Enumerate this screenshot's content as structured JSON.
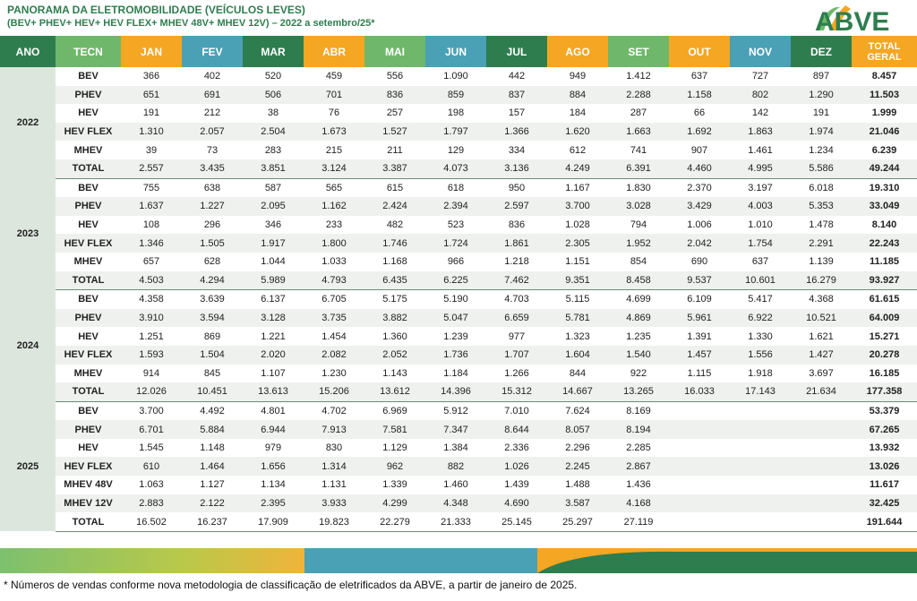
{
  "header": {
    "title": "PANORAMA DA ELETROMOBILIDADE (VEÍCULOS LEVES)",
    "subtitle": "(BEV+ PHEV+ HEV+ HEV FLEX+ MHEV 48V+ MHEV 12V) – 2022 a setembro/25*"
  },
  "logo": {
    "text": "ABVE",
    "colors": [
      "#2e7d4f",
      "#f5a623",
      "#4aa0b5"
    ]
  },
  "colors": {
    "green_dark": "#2e7d4f",
    "green_light": "#6fb86b",
    "orange": "#f5a623",
    "teal": "#4aa0b5"
  },
  "columns": [
    {
      "label": "ANO",
      "color": "#2e7d4f"
    },
    {
      "label": "TECN",
      "color": "#6fb86b"
    },
    {
      "label": "JAN",
      "color": "#f5a623"
    },
    {
      "label": "FEV",
      "color": "#4aa0b5"
    },
    {
      "label": "MAR",
      "color": "#2e7d4f"
    },
    {
      "label": "ABR",
      "color": "#f5a623"
    },
    {
      "label": "MAI",
      "color": "#6fb86b"
    },
    {
      "label": "JUN",
      "color": "#4aa0b5"
    },
    {
      "label": "JUL",
      "color": "#2e7d4f"
    },
    {
      "label": "AGO",
      "color": "#f5a623"
    },
    {
      "label": "SET",
      "color": "#6fb86b"
    },
    {
      "label": "OUT",
      "color": "#f5a623"
    },
    {
      "label": "NOV",
      "color": "#4aa0b5"
    },
    {
      "label": "DEZ",
      "color": "#2e7d4f"
    },
    {
      "label": "TOTAL GERAL",
      "color": "#f5a623"
    }
  ],
  "years": [
    {
      "year": "2022",
      "rows": [
        {
          "tech": "BEV",
          "values": [
            "366",
            "402",
            "520",
            "459",
            "556",
            "1.090",
            "442",
            "949",
            "1.412",
            "637",
            "727",
            "897"
          ],
          "total": "8.457"
        },
        {
          "tech": "PHEV",
          "values": [
            "651",
            "691",
            "506",
            "701",
            "836",
            "859",
            "837",
            "884",
            "2.288",
            "1.158",
            "802",
            "1.290"
          ],
          "total": "11.503"
        },
        {
          "tech": "HEV",
          "values": [
            "191",
            "212",
            "38",
            "76",
            "257",
            "198",
            "157",
            "184",
            "287",
            "66",
            "142",
            "191"
          ],
          "total": "1.999"
        },
        {
          "tech": "HEV FLEX",
          "values": [
            "1.310",
            "2.057",
            "2.504",
            "1.673",
            "1.527",
            "1.797",
            "1.366",
            "1.620",
            "1.663",
            "1.692",
            "1.863",
            "1.974"
          ],
          "total": "21.046"
        },
        {
          "tech": "MHEV",
          "values": [
            "39",
            "73",
            "283",
            "215",
            "211",
            "129",
            "334",
            "612",
            "741",
            "907",
            "1.461",
            "1.234"
          ],
          "total": "6.239"
        },
        {
          "tech": "TOTAL",
          "values": [
            "2.557",
            "3.435",
            "3.851",
            "3.124",
            "3.387",
            "4.073",
            "3.136",
            "4.249",
            "6.391",
            "4.460",
            "4.995",
            "5.586"
          ],
          "total": "49.244"
        }
      ]
    },
    {
      "year": "2023",
      "rows": [
        {
          "tech": "BEV",
          "values": [
            "755",
            "638",
            "587",
            "565",
            "615",
            "618",
            "950",
            "1.167",
            "1.830",
            "2.370",
            "3.197",
            "6.018"
          ],
          "total": "19.310"
        },
        {
          "tech": "PHEV",
          "values": [
            "1.637",
            "1.227",
            "2.095",
            "1.162",
            "2.424",
            "2.394",
            "2.597",
            "3.700",
            "3.028",
            "3.429",
            "4.003",
            "5.353"
          ],
          "total": "33.049"
        },
        {
          "tech": "HEV",
          "values": [
            "108",
            "296",
            "346",
            "233",
            "482",
            "523",
            "836",
            "1.028",
            "794",
            "1.006",
            "1.010",
            "1.478"
          ],
          "total": "8.140"
        },
        {
          "tech": "HEV FLEX",
          "values": [
            "1.346",
            "1.505",
            "1.917",
            "1.800",
            "1.746",
            "1.724",
            "1.861",
            "2.305",
            "1.952",
            "2.042",
            "1.754",
            "2.291"
          ],
          "total": "22.243"
        },
        {
          "tech": "MHEV",
          "values": [
            "657",
            "628",
            "1.044",
            "1.033",
            "1.168",
            "966",
            "1.218",
            "1.151",
            "854",
            "690",
            "637",
            "1.139"
          ],
          "total": "11.185"
        },
        {
          "tech": "TOTAL",
          "values": [
            "4.503",
            "4.294",
            "5.989",
            "4.793",
            "6.435",
            "6.225",
            "7.462",
            "9.351",
            "8.458",
            "9.537",
            "10.601",
            "16.279"
          ],
          "total": "93.927"
        }
      ]
    },
    {
      "year": "2024",
      "rows": [
        {
          "tech": "BEV",
          "values": [
            "4.358",
            "3.639",
            "6.137",
            "6.705",
            "5.175",
            "5.190",
            "4.703",
            "5.115",
            "4.699",
            "6.109",
            "5.417",
            "4.368"
          ],
          "total": "61.615"
        },
        {
          "tech": "PHEV",
          "values": [
            "3.910",
            "3.594",
            "3.128",
            "3.735",
            "3.882",
            "5.047",
            "6.659",
            "5.781",
            "4.869",
            "5.961",
            "6.922",
            "10.521"
          ],
          "total": "64.009"
        },
        {
          "tech": "HEV",
          "values": [
            "1.251",
            "869",
            "1.221",
            "1.454",
            "1.360",
            "1.239",
            "977",
            "1.323",
            "1.235",
            "1.391",
            "1.330",
            "1.621"
          ],
          "total": "15.271"
        },
        {
          "tech": "HEV FLEX",
          "values": [
            "1.593",
            "1.504",
            "2.020",
            "2.082",
            "2.052",
            "1.736",
            "1.707",
            "1.604",
            "1.540",
            "1.457",
            "1.556",
            "1.427"
          ],
          "total": "20.278"
        },
        {
          "tech": "MHEV",
          "values": [
            "914",
            "845",
            "1.107",
            "1.230",
            "1.143",
            "1.184",
            "1.266",
            "844",
            "922",
            "1.115",
            "1.918",
            "3.697"
          ],
          "total": "16.185"
        },
        {
          "tech": "TOTAL",
          "values": [
            "12.026",
            "10.451",
            "13.613",
            "15.206",
            "13.612",
            "14.396",
            "15.312",
            "14.667",
            "13.265",
            "16.033",
            "17.143",
            "21.634"
          ],
          "total": "177.358"
        }
      ]
    },
    {
      "year": "2025",
      "rows": [
        {
          "tech": "BEV",
          "values": [
            "3.700",
            "4.492",
            "4.801",
            "4.702",
            "6.969",
            "5.912",
            "7.010",
            "7.624",
            "8.169",
            "",
            "",
            ""
          ],
          "total": "53.379"
        },
        {
          "tech": "PHEV",
          "values": [
            "6.701",
            "5.884",
            "6.944",
            "7.913",
            "7.581",
            "7.347",
            "8.644",
            "8.057",
            "8.194",
            "",
            "",
            ""
          ],
          "total": "67.265"
        },
        {
          "tech": "HEV",
          "values": [
            "1.545",
            "1.148",
            "979",
            "830",
            "1.129",
            "1.384",
            "2.336",
            "2.296",
            "2.285",
            "",
            "",
            ""
          ],
          "total": "13.932"
        },
        {
          "tech": "HEV FLEX",
          "values": [
            "610",
            "1.464",
            "1.656",
            "1.314",
            "962",
            "882",
            "1.026",
            "2.245",
            "2.867",
            "",
            "",
            ""
          ],
          "total": "13.026"
        },
        {
          "tech": "MHEV 48V",
          "values": [
            "1.063",
            "1.127",
            "1.134",
            "1.131",
            "1.339",
            "1.460",
            "1.439",
            "1.488",
            "1.436",
            "",
            "",
            ""
          ],
          "total": "11.617"
        },
        {
          "tech": "MHEV 12V",
          "values": [
            "2.883",
            "2.122",
            "2.395",
            "3.933",
            "4.299",
            "4.348",
            "4.690",
            "3.587",
            "4.168",
            "",
            "",
            ""
          ],
          "total": "32.425"
        },
        {
          "tech": "TOTAL",
          "values": [
            "16.502",
            "16.237",
            "17.909",
            "19.823",
            "22.279",
            "21.333",
            "25.145",
            "25.297",
            "27.119",
            "",
            "",
            ""
          ],
          "total": "191.644"
        }
      ]
    }
  ],
  "footnote": "* Números de vendas conforme nova metodologia de classificação de eletrificados da ABVE, a partir de janeiro de 2025."
}
